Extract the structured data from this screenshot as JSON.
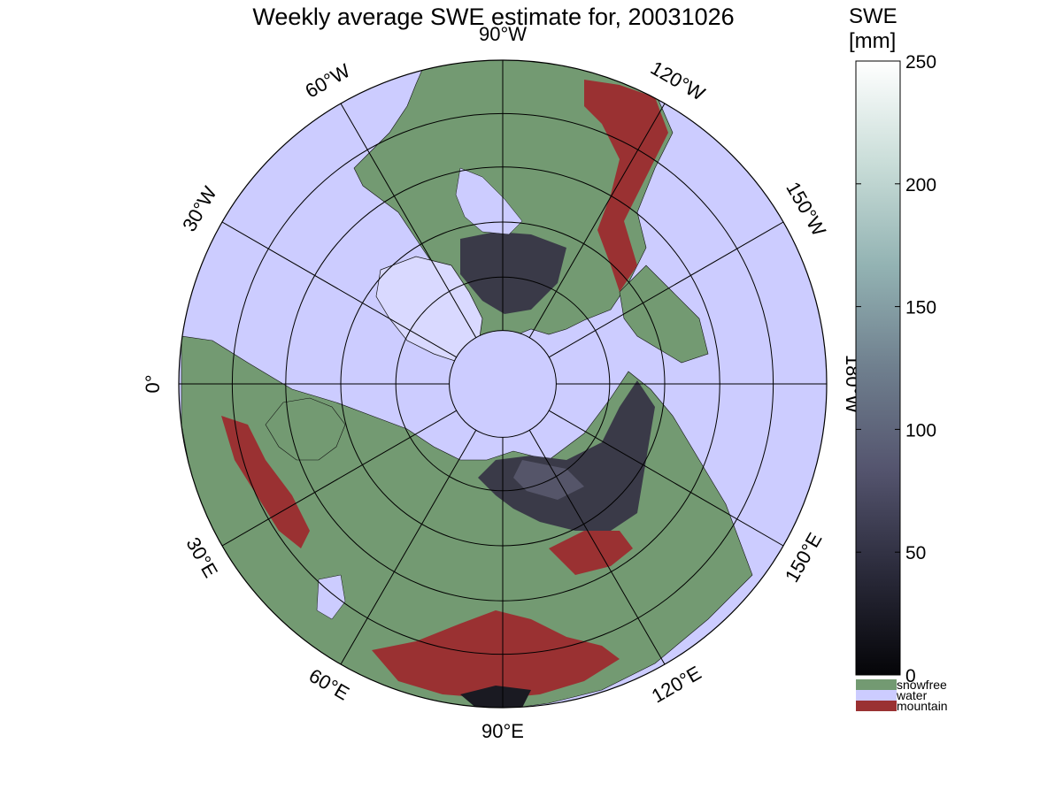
{
  "title": "Weekly average SWE estimate for, 20031026",
  "colorbar": {
    "label_line1": "SWE",
    "label_line2": "[mm]",
    "ticks": [
      "0",
      "50",
      "100",
      "150",
      "200",
      "250"
    ],
    "range": [
      0,
      250
    ],
    "gradient_stops": [
      "#050508",
      "#2a2a3a",
      "#54546e",
      "#6f7f8e",
      "#93b3b3",
      "#c9ddd8",
      "#ffffff"
    ]
  },
  "legend": [
    {
      "label": "snowfree",
      "color": "#739a72"
    },
    {
      "label": "water",
      "color": "#ccccff"
    },
    {
      "label": "mountain",
      "color": "#9a3132"
    }
  ],
  "longitude_labels": [
    {
      "text": "90°W",
      "lon": -90
    },
    {
      "text": "120°W",
      "lon": -120
    },
    {
      "text": "150°W",
      "lon": -150
    },
    {
      "text": "180°W",
      "lon": 180
    },
    {
      "text": "150°E",
      "lon": 150
    },
    {
      "text": "120°E",
      "lon": 120
    },
    {
      "text": "90°E",
      "lon": 90
    },
    {
      "text": "60°E",
      "lon": 60
    },
    {
      "text": "30°E",
      "lon": 30
    },
    {
      "text": "0°",
      "lon": 0
    },
    {
      "text": "30°W",
      "lon": -30
    },
    {
      "text": "60°W",
      "lon": -60
    }
  ],
  "colors": {
    "water": "#ccccff",
    "land": "#739a72",
    "mountain": "#9a3132",
    "snow": "#3a3a48",
    "snow_light": "#5c5c72",
    "ice": "#d9d9ff"
  }
}
